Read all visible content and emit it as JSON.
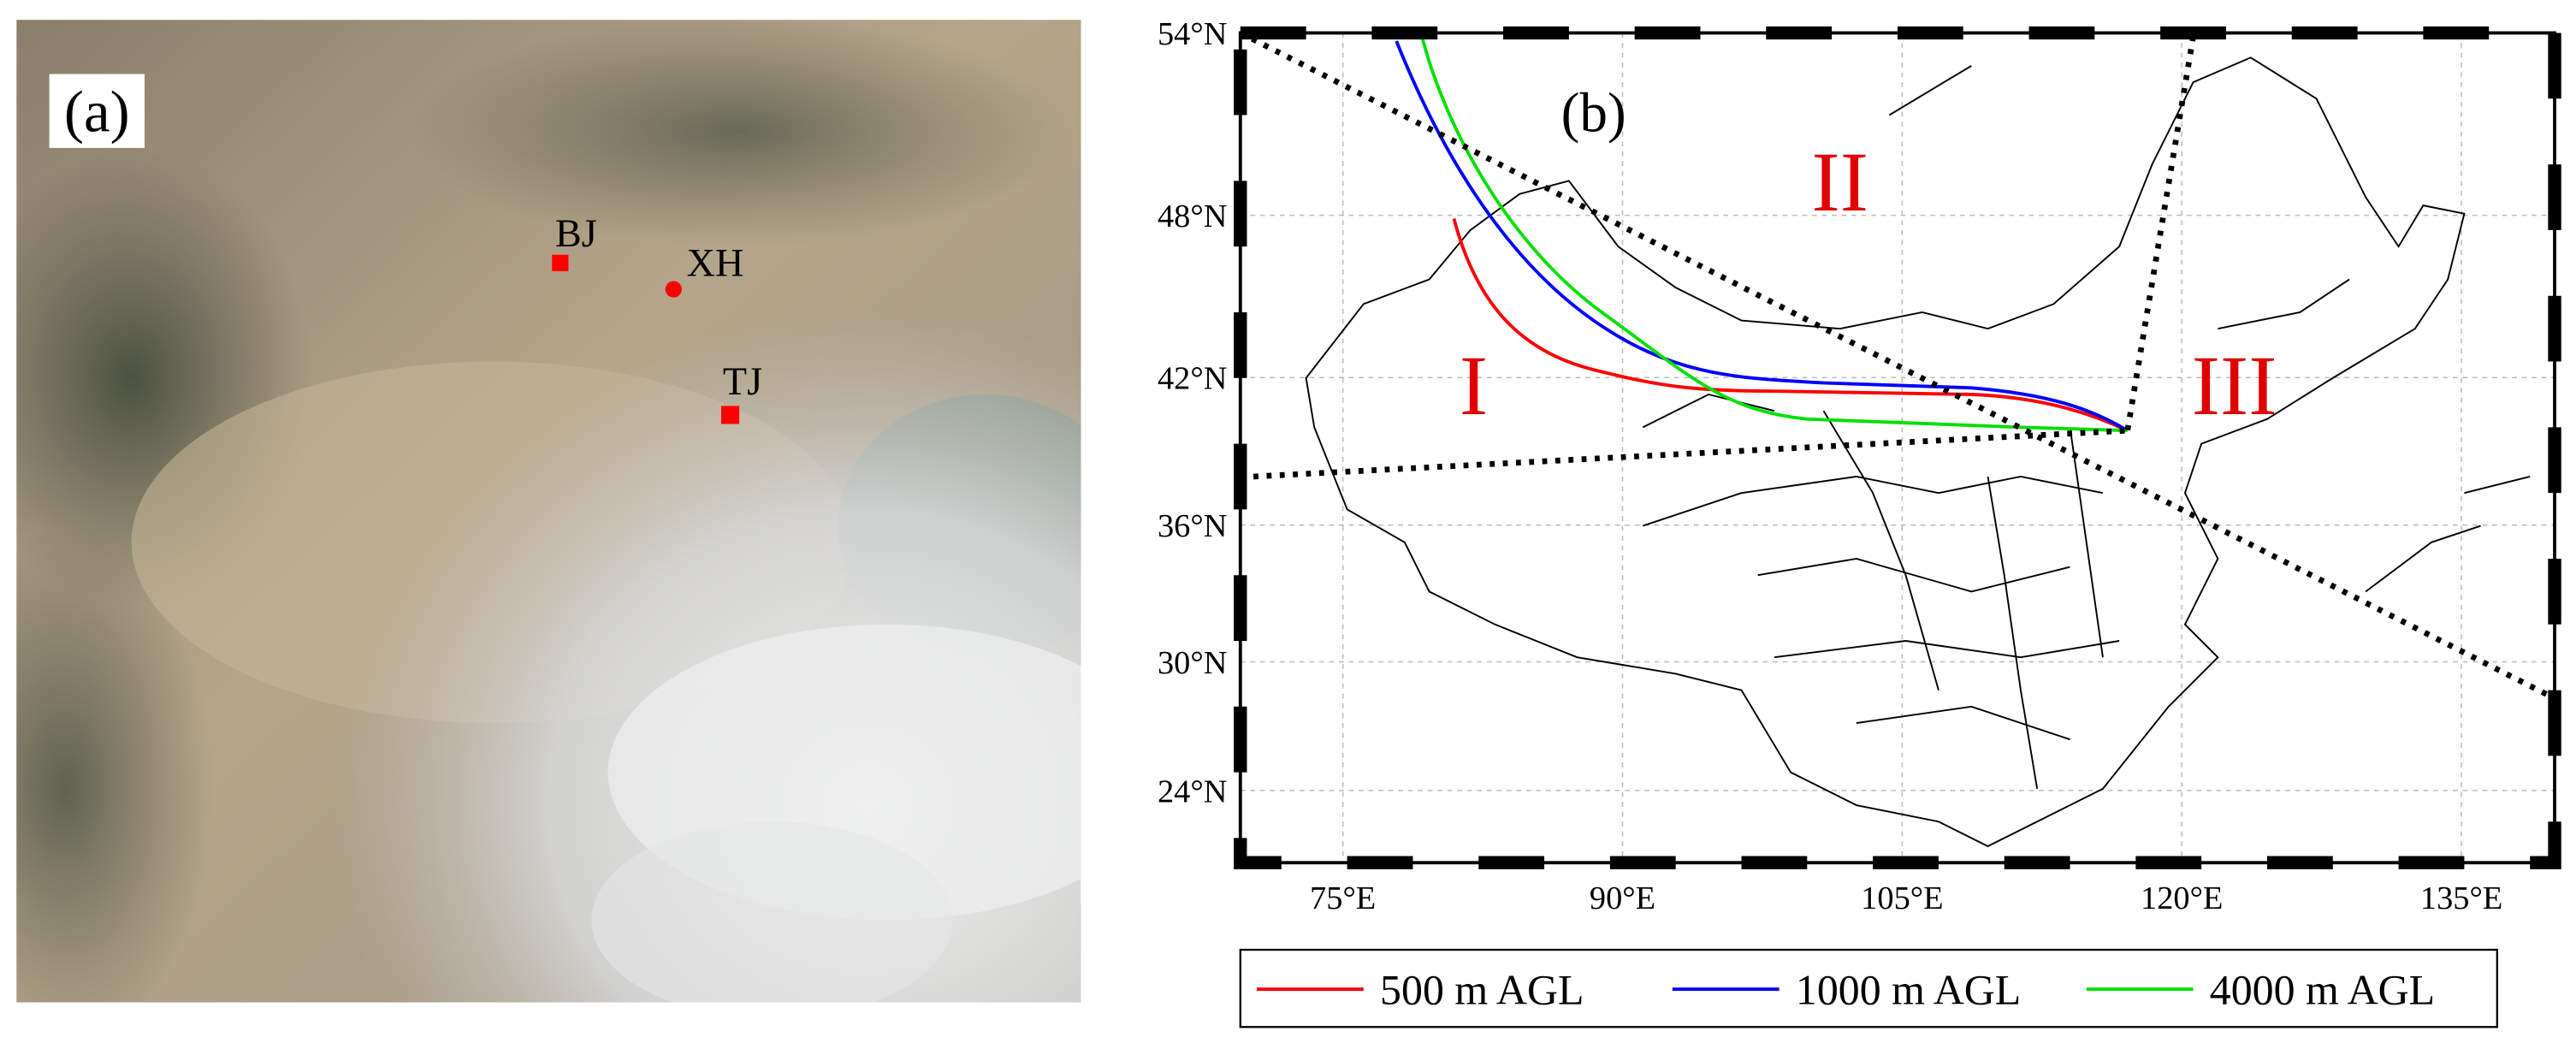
{
  "panel_a": {
    "label": "(a)",
    "sites": [
      {
        "name": "BJ"
      },
      {
        "name": "XH"
      },
      {
        "name": "TJ"
      }
    ]
  },
  "panel_b": {
    "label": "(b)",
    "regions": [
      "I",
      "II",
      "III"
    ],
    "projection": "mercator",
    "xlim": [
      69.5,
      140
    ],
    "ylim": [
      20.5,
      54
    ],
    "xticks": [
      {
        "value": 75,
        "label": "75°E"
      },
      {
        "value": 90,
        "label": "90°E"
      },
      {
        "value": 105,
        "label": "105°E"
      },
      {
        "value": 120,
        "label": "120°E"
      },
      {
        "value": 135,
        "label": "135°E"
      }
    ],
    "yticks": [
      {
        "value": 24,
        "label": "24°N"
      },
      {
        "value": 30,
        "label": "30°N"
      },
      {
        "value": 36,
        "label": "36°N"
      },
      {
        "value": 42,
        "label": "42°N"
      },
      {
        "value": 48,
        "label": "48°N"
      },
      {
        "value": 54,
        "label": "54°N"
      }
    ],
    "grid": true,
    "series": [
      {
        "name": "500 m AGL",
        "color": "#ff0000"
      },
      {
        "name": "1000 m AGL",
        "color": "#0000ff"
      },
      {
        "name": "4000 m AGL",
        "color": "#00e000"
      }
    ]
  }
}
